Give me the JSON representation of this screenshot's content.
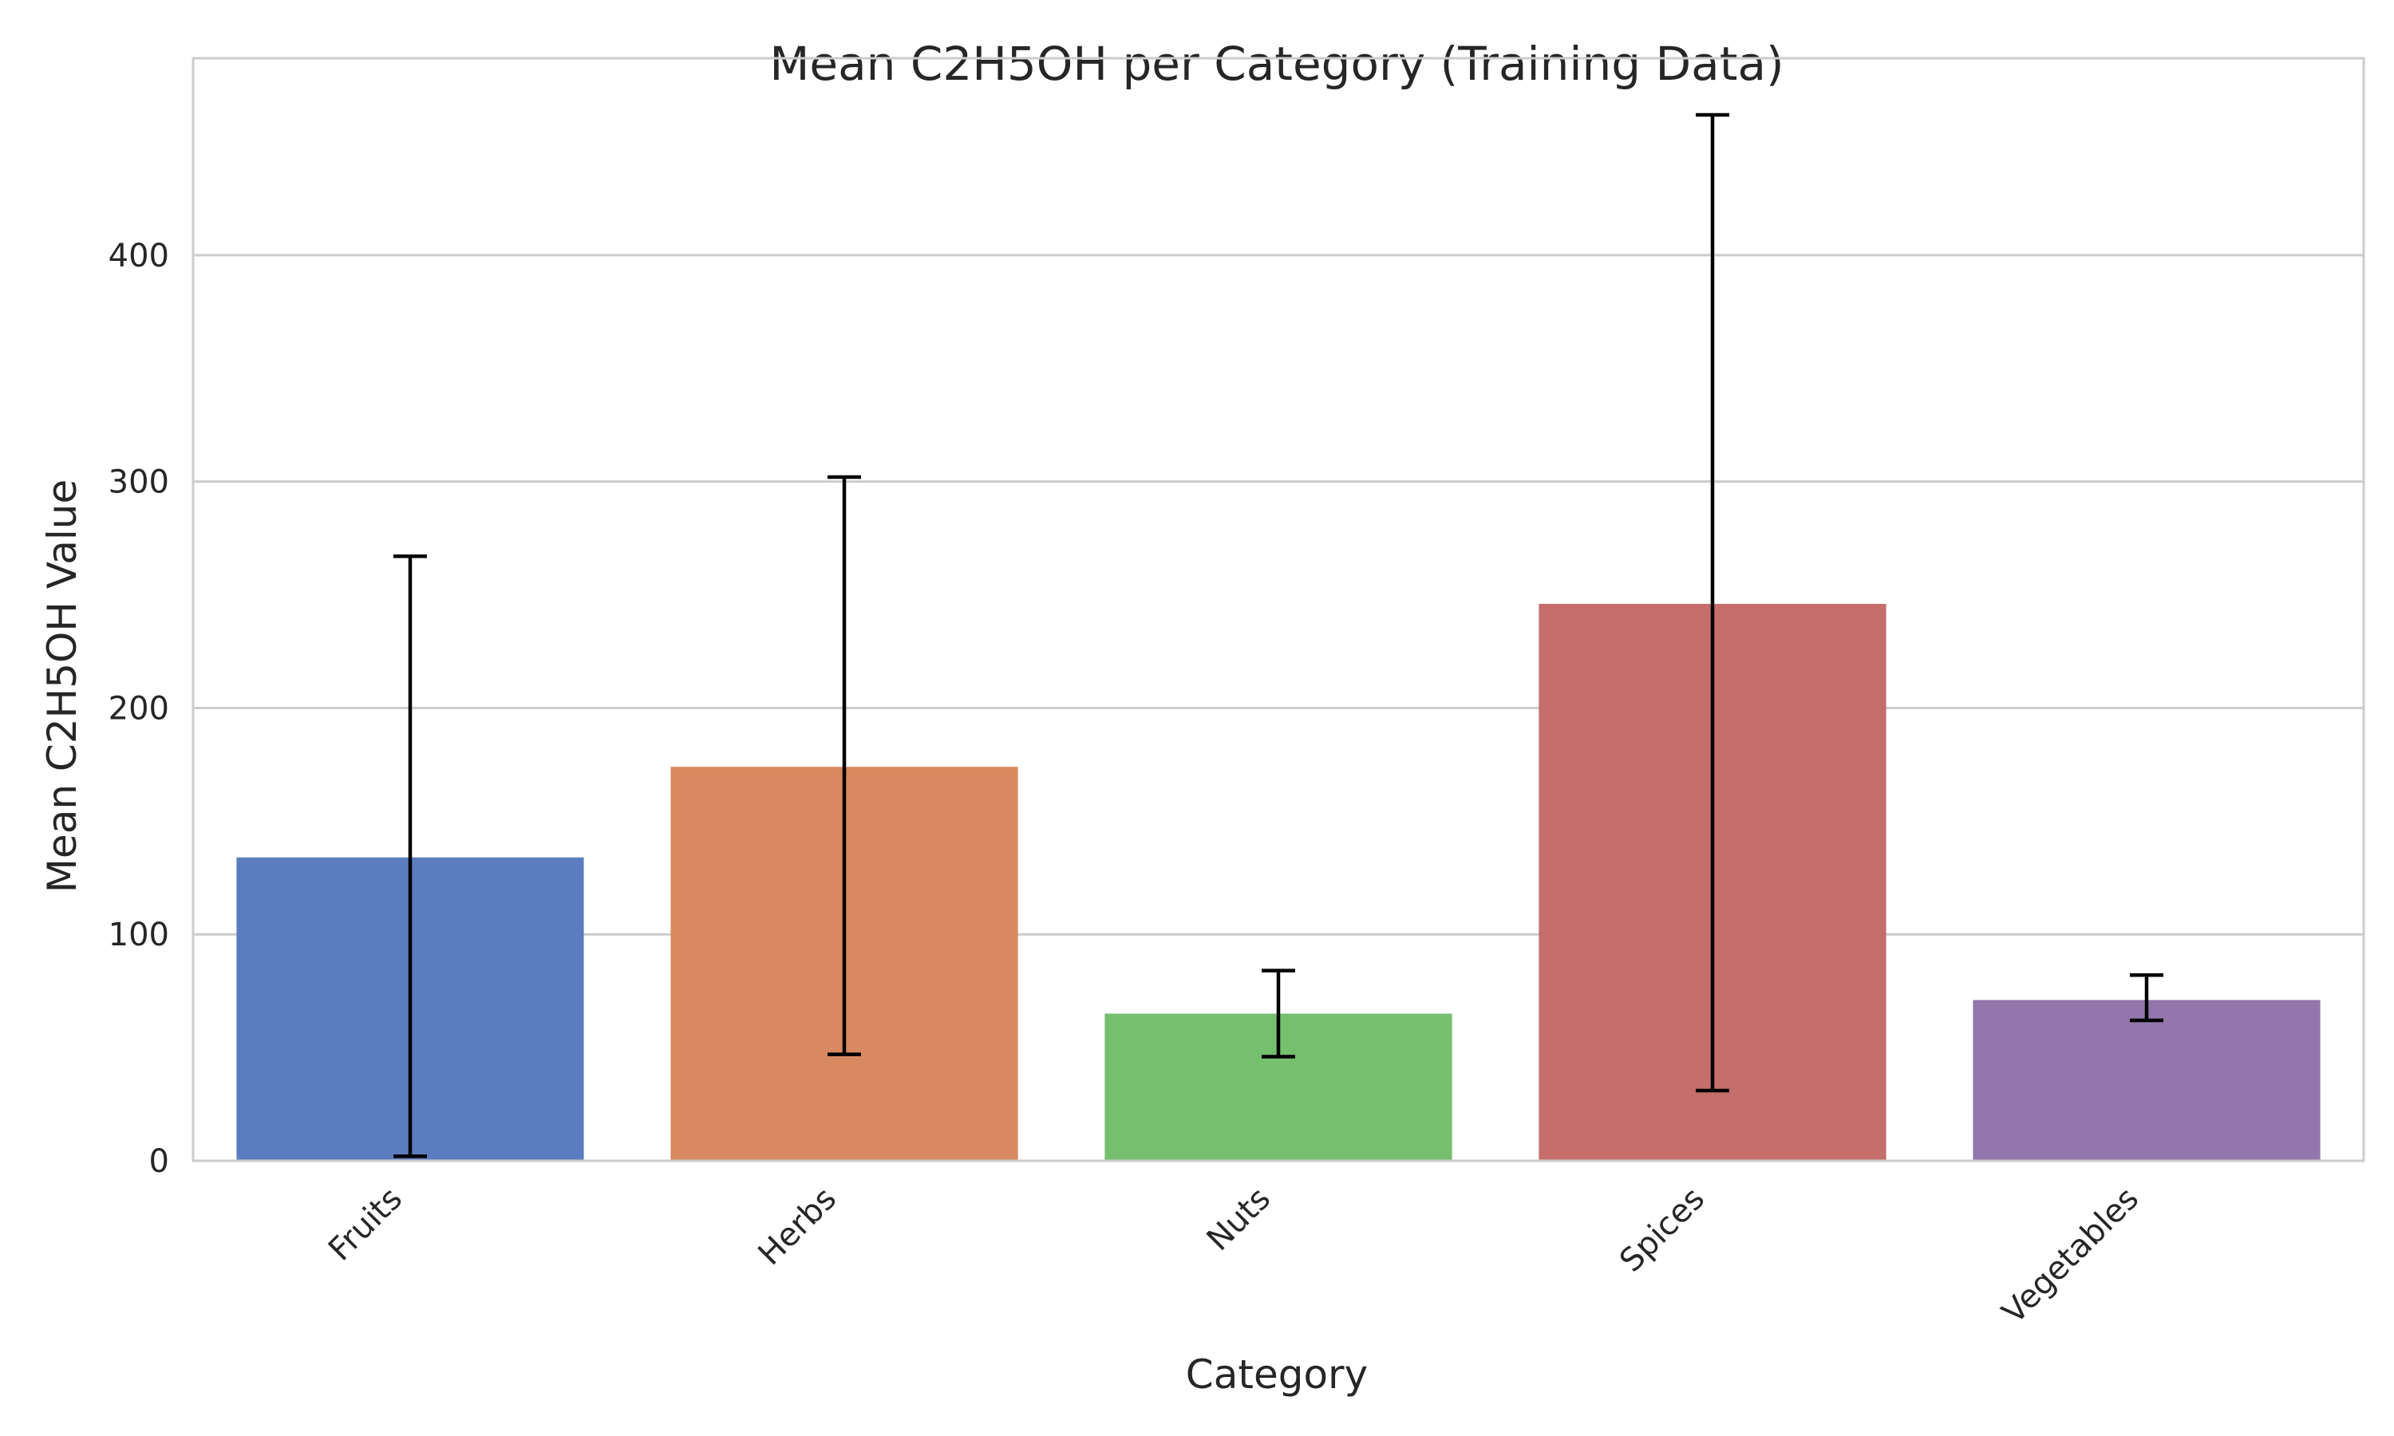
{
  "chart_data": {
    "type": "bar",
    "title": "Mean C2H5OH per Category (Training Data)",
    "xlabel": "Category",
    "ylabel": "Mean C2H5OH Value",
    "categories": [
      "Fruits",
      "Herbs",
      "Nuts",
      "Spices",
      "Vegetables"
    ],
    "values": [
      134,
      174,
      65,
      246,
      71
    ],
    "error_low": [
      2,
      47,
      46,
      31,
      62
    ],
    "error_high": [
      267,
      302,
      84,
      462,
      82
    ],
    "colors": [
      "#5b7dbf",
      "#d9895f",
      "#75bf6f",
      "#c56e6c",
      "#9276ac"
    ],
    "yticks": [
      0,
      100,
      200,
      300,
      400
    ],
    "ylim": [
      0,
      487
    ],
    "grid": true,
    "legend": "none"
  }
}
